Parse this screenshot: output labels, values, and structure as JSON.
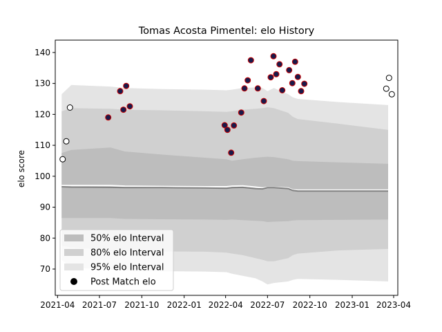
{
  "chart_data": {
    "type": "area",
    "title": "Tomas Acosta Pimentel: elo History",
    "xlabel": "",
    "ylabel": "elo score",
    "xlim": [
      "2021-03-27",
      "2023-04-10"
    ],
    "ylim": [
      61.5,
      144
    ],
    "x_ticks": [
      "2021-04-01",
      "2021-07-01",
      "2021-10-01",
      "2022-01-01",
      "2022-04-01",
      "2022-07-01",
      "2022-10-01",
      "2023-01-01",
      "2023-04-01"
    ],
    "x_tick_labels": [
      "2021-04",
      "2021-07",
      "2021-10",
      "2022-01",
      "2022-04",
      "2022-07",
      "2022-10",
      "2023-01",
      "2023-04"
    ],
    "y_ticks": [
      70,
      80,
      90,
      100,
      110,
      120,
      130,
      140
    ],
    "legend": {
      "position": "lower-left",
      "entries": [
        "50% elo Interval",
        "80% elo Interval",
        "95% elo Interval",
        "Post Match elo"
      ]
    },
    "colors": {
      "band50": "#bdbdbd",
      "band80": "#d0d0d0",
      "band95": "#e4e4e4",
      "median": "#808080",
      "mean": "#ffffff",
      "point_fill": "#1a1a4a",
      "point_edge_highlight": "#cc0000",
      "point_edge_plain": "#000000"
    },
    "bands": {
      "x": [
        "2021-04-10",
        "2021-05-01",
        "2021-07-25",
        "2021-08-25",
        "2021-11-15",
        "2022-02-15",
        "2022-04-03",
        "2022-04-15",
        "2022-05-08",
        "2022-06-05",
        "2022-06-20",
        "2022-07-01",
        "2022-07-15",
        "2022-08-15",
        "2022-08-25",
        "2022-09-05",
        "2022-12-01",
        "2023-03-20"
      ],
      "median": [
        96.6,
        96.5,
        96.4,
        96.3,
        96.3,
        96.2,
        96.1,
        96.3,
        96.4,
        96.0,
        95.9,
        96.3,
        96.3,
        96.0,
        95.4,
        95.2,
        95.2,
        95.2
      ],
      "mean": [
        97.0,
        97.0,
        97.0,
        96.8,
        96.7,
        96.6,
        96.6,
        96.8,
        96.9,
        96.5,
        96.2,
        96.4,
        96.4,
        96.2,
        95.6,
        95.5,
        95.5,
        95.5
      ],
      "p50_lower": [
        86.5,
        86.5,
        86.5,
        86.2,
        86.1,
        86.0,
        85.9,
        86.0,
        85.8,
        85.6,
        85.5,
        85.2,
        85.3,
        85.5,
        85.7,
        85.8,
        85.9,
        86.0
      ],
      "p50_upper": [
        107.5,
        108.5,
        109.3,
        108.0,
        107.0,
        106.0,
        105.5,
        105.0,
        105.5,
        106.0,
        106.2,
        106.3,
        106.2,
        105.5,
        105.0,
        104.9,
        104.5,
        104.0
      ],
      "p80_lower": [
        77.5,
        77.0,
        76.0,
        75.8,
        75.7,
        75.6,
        75.3,
        75.0,
        74.5,
        73.5,
        73.0,
        72.5,
        72.5,
        73.5,
        74.5,
        75.0,
        76.0,
        76.5
      ],
      "p80_upper": [
        121.0,
        122.0,
        121.8,
        121.5,
        121.3,
        121.0,
        120.8,
        121.0,
        121.5,
        121.8,
        122.0,
        122.3,
        122.0,
        120.5,
        119.2,
        118.5,
        117.0,
        115.0
      ],
      "p95_lower": [
        73.0,
        70.5,
        69.8,
        69.5,
        69.3,
        69.2,
        69.0,
        68.5,
        67.8,
        67.0,
        66.0,
        65.0,
        65.5,
        66.0,
        66.5,
        66.8,
        66.5,
        66.0
      ],
      "p95_upper": [
        126.5,
        129.5,
        129.0,
        128.5,
        128.2,
        128.0,
        127.8,
        128.0,
        128.5,
        128.7,
        128.5,
        127.5,
        128.5,
        126.5,
        125.5,
        125.0,
        124.0,
        123.0
      ]
    },
    "post_match_elo": [
      {
        "x": "2021-04-12",
        "y": 105.5,
        "highlight": false
      },
      {
        "x": "2021-04-20",
        "y": 111.3,
        "highlight": false
      },
      {
        "x": "2021-04-28",
        "y": 122.2,
        "highlight": false
      },
      {
        "x": "2021-07-20",
        "y": 119.0,
        "highlight": true
      },
      {
        "x": "2021-08-15",
        "y": 127.5,
        "highlight": true
      },
      {
        "x": "2021-08-22",
        "y": 121.5,
        "highlight": true
      },
      {
        "x": "2021-08-28",
        "y": 129.2,
        "highlight": true
      },
      {
        "x": "2021-09-05",
        "y": 122.6,
        "highlight": true
      },
      {
        "x": "2022-03-30",
        "y": 116.5,
        "highlight": true
      },
      {
        "x": "2022-04-05",
        "y": 115.0,
        "highlight": true
      },
      {
        "x": "2022-04-13",
        "y": 107.6,
        "highlight": true
      },
      {
        "x": "2022-04-19",
        "y": 116.4,
        "highlight": true
      },
      {
        "x": "2022-05-05",
        "y": 120.6,
        "highlight": true
      },
      {
        "x": "2022-05-12",
        "y": 128.4,
        "highlight": true
      },
      {
        "x": "2022-05-19",
        "y": 131.0,
        "highlight": true
      },
      {
        "x": "2022-05-26",
        "y": 137.5,
        "highlight": true
      },
      {
        "x": "2022-06-10",
        "y": 128.4,
        "highlight": true
      },
      {
        "x": "2022-06-23",
        "y": 124.3,
        "highlight": true
      },
      {
        "x": "2022-07-08",
        "y": 132.0,
        "highlight": true
      },
      {
        "x": "2022-07-14",
        "y": 138.8,
        "highlight": true
      },
      {
        "x": "2022-07-20",
        "y": 133.0,
        "highlight": true
      },
      {
        "x": "2022-07-27",
        "y": 136.2,
        "highlight": true
      },
      {
        "x": "2022-08-02",
        "y": 127.8,
        "highlight": true
      },
      {
        "x": "2022-08-17",
        "y": 134.3,
        "highlight": true
      },
      {
        "x": "2022-08-24",
        "y": 130.1,
        "highlight": true
      },
      {
        "x": "2022-08-30",
        "y": 137.0,
        "highlight": true
      },
      {
        "x": "2022-09-05",
        "y": 132.1,
        "highlight": true
      },
      {
        "x": "2022-09-12",
        "y": 127.5,
        "highlight": true
      },
      {
        "x": "2022-09-19",
        "y": 129.9,
        "highlight": true
      },
      {
        "x": "2023-03-16",
        "y": 128.3,
        "highlight": false
      },
      {
        "x": "2023-03-22",
        "y": 131.8,
        "highlight": false
      },
      {
        "x": "2023-03-28",
        "y": 126.5,
        "highlight": false
      }
    ]
  }
}
